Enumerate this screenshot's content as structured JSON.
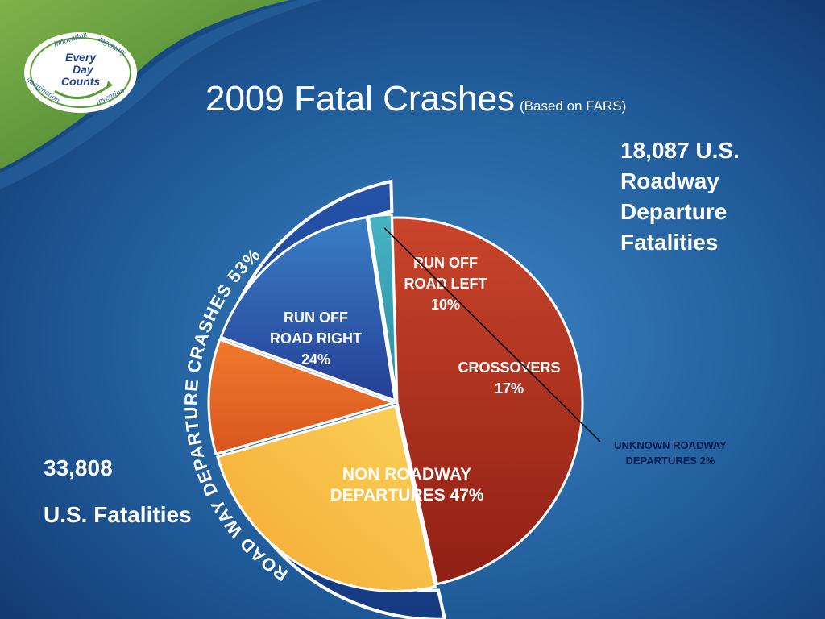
{
  "slide": {
    "title": "2009 Fatal Crashes",
    "title_note": "(Based on FARS)",
    "roadway_total_lines": [
      "18,087 U.S.",
      "Roadway",
      "Departure",
      "Fatalities"
    ],
    "us_total_value": "33,808",
    "us_total_label": "U.S. Fatalities",
    "logo": {
      "center": [
        "Every",
        "Day",
        "Counts"
      ],
      "ring": [
        "innovation",
        "ingenuity",
        "invention",
        "imagination"
      ]
    }
  },
  "chart_data": {
    "type": "pie",
    "arc_label": "ROAD WAY DEPARTURE CRASHES 53%",
    "slices": [
      {
        "label": [
          "RUN OFF",
          "ROAD LEFT",
          "10%"
        ],
        "value": 10,
        "color": "#e8692a"
      },
      {
        "label": [
          "CROSSOVERS",
          "17%"
        ],
        "value": 17,
        "color": "#2e5fae"
      },
      {
        "label": [
          "UNKNOWN ROADWAY",
          "DEPARTURES 2%"
        ],
        "value": 2,
        "color": "#3aa1b4"
      },
      {
        "label": [
          "NON ROADWAY",
          "DEPARTURES 47%"
        ],
        "value": 47,
        "color": "#b5301f"
      },
      {
        "label": [
          "RUN OFF",
          "ROAD RIGHT",
          "24%"
        ],
        "value": 24,
        "color": "#f7b53b"
      }
    ]
  },
  "colors": {
    "background": "#1d4e8a",
    "arc_band": "#1f3f8f",
    "logo_green": "#5a9c3a"
  }
}
